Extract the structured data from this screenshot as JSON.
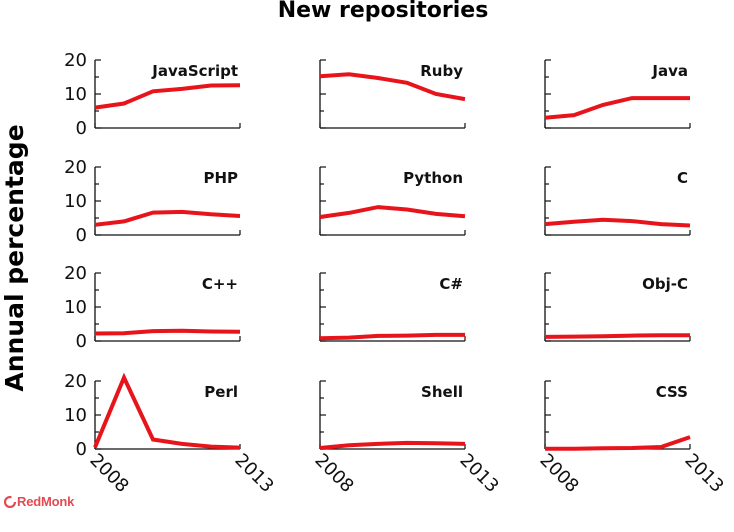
{
  "title": "New repositories",
  "ylabel": "Annual percentage",
  "brand": "RedMonk",
  "colors": {
    "line": "#e8141b",
    "axis": "#111111",
    "brand": "#e34b52"
  },
  "chart_data": {
    "type": "line",
    "title": "New repositories",
    "ylabel": "Annual percentage",
    "x": [
      2008,
      2009,
      2010,
      2011,
      2012,
      2013
    ],
    "xticks": [
      "2008",
      "2013"
    ],
    "ylim": [
      0,
      20
    ],
    "yticks": [
      "0",
      "10",
      "20"
    ],
    "layout": "4x3 small multiples",
    "series": [
      {
        "name": "JavaScript",
        "values": [
          6.0,
          7.2,
          10.8,
          11.5,
          12.5,
          12.6
        ]
      },
      {
        "name": "Ruby",
        "values": [
          15.2,
          15.8,
          14.7,
          13.3,
          10.0,
          8.5
        ]
      },
      {
        "name": "Java",
        "values": [
          3.0,
          3.8,
          6.8,
          8.8,
          8.8,
          8.8
        ]
      },
      {
        "name": "PHP",
        "values": [
          3.0,
          4.0,
          6.6,
          6.8,
          6.1,
          5.6
        ]
      },
      {
        "name": "Python",
        "values": [
          5.3,
          6.5,
          8.2,
          7.5,
          6.2,
          5.5
        ]
      },
      {
        "name": "C",
        "values": [
          3.2,
          3.9,
          4.5,
          4.1,
          3.2,
          2.8
        ]
      },
      {
        "name": "C++",
        "values": [
          2.2,
          2.3,
          2.9,
          3.0,
          2.8,
          2.7
        ]
      },
      {
        "name": "C#",
        "values": [
          0.8,
          1.0,
          1.5,
          1.6,
          1.8,
          1.8
        ]
      },
      {
        "name": "Obj-C",
        "values": [
          1.2,
          1.3,
          1.4,
          1.6,
          1.7,
          1.7
        ]
      },
      {
        "name": "Perl",
        "values": [
          0.5,
          21.0,
          2.8,
          1.5,
          0.7,
          0.4
        ]
      },
      {
        "name": "Shell",
        "values": [
          0.3,
          1.1,
          1.5,
          1.8,
          1.7,
          1.5
        ]
      },
      {
        "name": "CSS",
        "values": [
          0.1,
          0.1,
          0.2,
          0.3,
          0.6,
          3.5
        ]
      }
    ]
  }
}
